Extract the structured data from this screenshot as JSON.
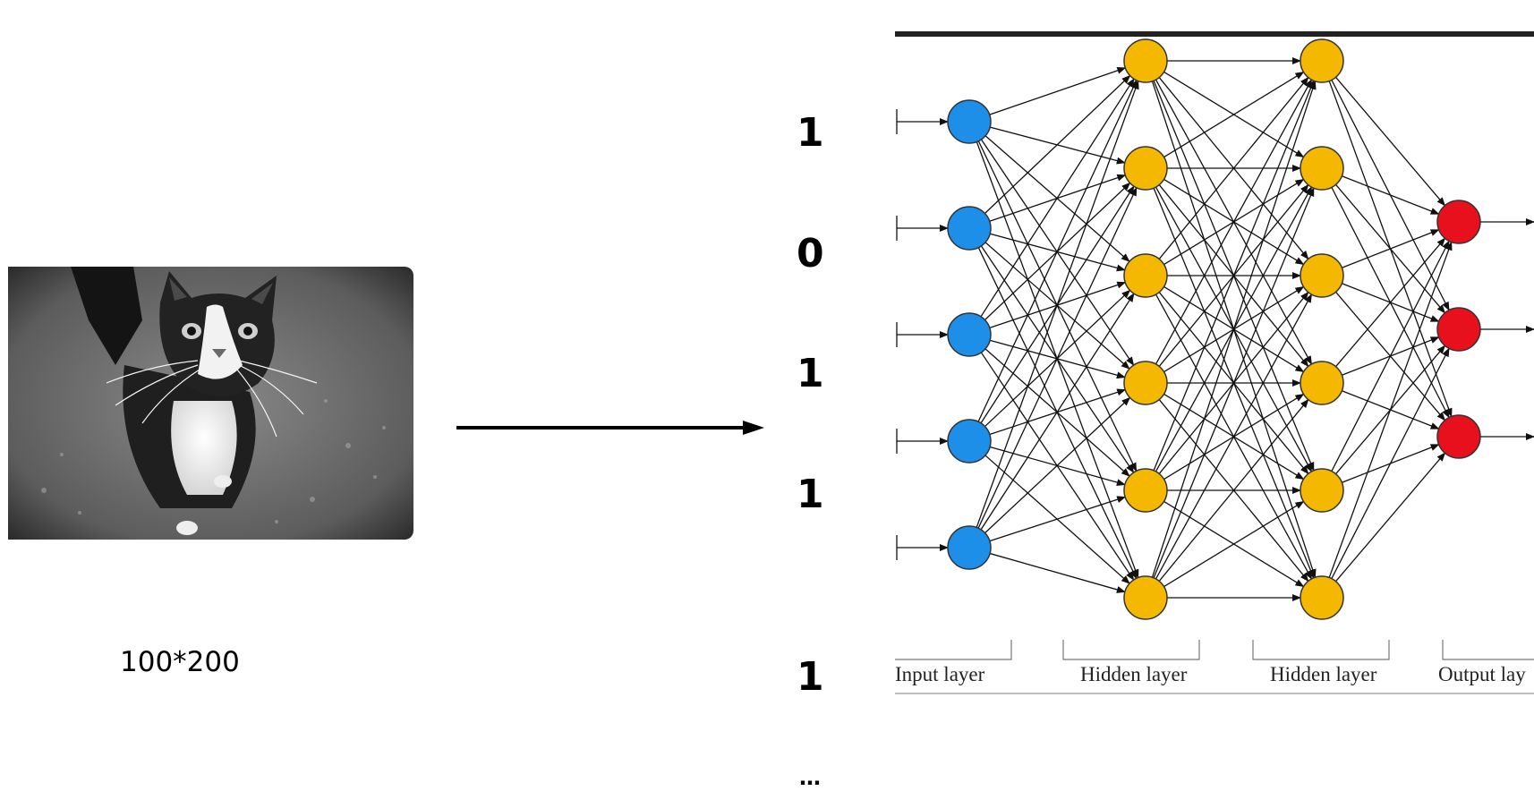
{
  "left": {
    "image_caption": "100*200"
  },
  "vector": {
    "values": [
      "1",
      "0",
      "1",
      "1",
      "1"
    ],
    "ellipsis": "…"
  },
  "network": {
    "layer_labels": [
      "Input layer",
      "Hidden layer",
      "Hidden layer",
      "Output lay"
    ],
    "colors": {
      "input": "#1e8fe8",
      "hidden": "#f5b800",
      "output": "#e8101c",
      "edges": "#111111"
    }
  }
}
